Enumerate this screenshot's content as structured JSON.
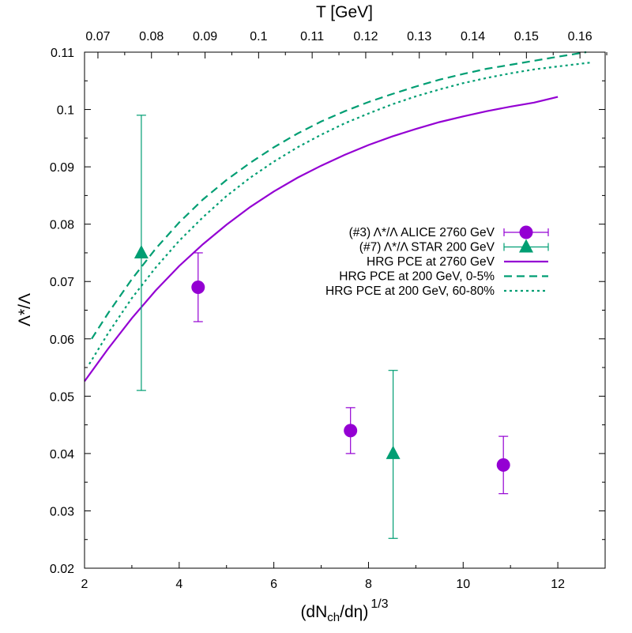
{
  "chart_data": {
    "type": "scatter",
    "title": "",
    "xlabel": "(dN_ch/dη)^{1/3}",
    "xlabel_parts": {
      "base": "(dN",
      "sub": "ch",
      "mid": "/dη)",
      "sup": "1/3"
    },
    "ylabel": "Λ*/Λ",
    "x2label": "T [GeV]",
    "xlim": [
      2,
      13
    ],
    "ylim": [
      0.02,
      0.11
    ],
    "x2lim": [
      0.0675,
      0.1647
    ],
    "x_ticks": [
      2,
      4,
      6,
      8,
      10,
      12
    ],
    "x_tick_labels": [
      "2",
      "4",
      "6",
      "8",
      "10",
      "12"
    ],
    "y_ticks": [
      0.02,
      0.03,
      0.04,
      0.05,
      0.06,
      0.07,
      0.08,
      0.09,
      0.1,
      0.11
    ],
    "y_tick_labels": [
      "0.02",
      "0.03",
      "0.04",
      "0.05",
      "0.06",
      "0.07",
      "0.08",
      "0.09",
      "0.1",
      "0.11"
    ],
    "x2_ticks": [
      0.07,
      0.08,
      0.09,
      0.1,
      0.11,
      0.12,
      0.13,
      0.14,
      0.15,
      0.16
    ],
    "x2_tick_labels": [
      "0.07",
      "0.08",
      "0.09",
      "0.1",
      "0.11",
      "0.12",
      "0.13",
      "0.14",
      "0.15",
      "0.16"
    ],
    "legend_position": "center-right",
    "series": [
      {
        "name": "(#3) Λ*/Λ ALICE 2760 GeV",
        "kind": "points",
        "marker": "circle",
        "color": "#9400d3",
        "points": [
          {
            "x": 4.4,
            "y": 0.069,
            "ylo": 0.063,
            "yhi": 0.075
          },
          {
            "x": 7.62,
            "y": 0.044,
            "ylo": 0.04,
            "yhi": 0.048
          },
          {
            "x": 10.85,
            "y": 0.038,
            "ylo": 0.033,
            "yhi": 0.043
          }
        ]
      },
      {
        "name": "(#7) Λ*/Λ STAR 200 GeV",
        "kind": "points",
        "marker": "triangle",
        "color": "#009e73",
        "points": [
          {
            "x": 3.2,
            "y": 0.075,
            "ylo": 0.051,
            "yhi": 0.099
          },
          {
            "x": 8.52,
            "y": 0.04,
            "ylo": 0.0252,
            "yhi": 0.0545
          }
        ]
      },
      {
        "name": "HRG PCE  at 2760 GeV",
        "kind": "line",
        "style": "solid",
        "color": "#9400d3",
        "x": [
          2.0,
          2.5,
          3.0,
          3.5,
          4.0,
          4.5,
          5.0,
          5.5,
          6.0,
          6.5,
          7.0,
          7.5,
          8.0,
          8.5,
          9.0,
          9.5,
          10.0,
          10.5,
          11.0,
          11.5,
          12.0
        ],
        "y": [
          0.0526,
          0.0583,
          0.0636,
          0.0684,
          0.0727,
          0.0765,
          0.0799,
          0.083,
          0.0857,
          0.0881,
          0.0902,
          0.0921,
          0.0938,
          0.0953,
          0.0966,
          0.0978,
          0.0988,
          0.0997,
          0.1005,
          0.1012,
          0.1022
        ]
      },
      {
        "name": "HRG PCE  at 200 GeV, 0-5%",
        "kind": "line",
        "style": "dashed",
        "color": "#009e73",
        "x": [
          2.15,
          2.5,
          3.0,
          3.5,
          4.0,
          4.5,
          5.0,
          5.5,
          6.0,
          6.5,
          7.0,
          7.5,
          8.0,
          8.5,
          9.0,
          9.5,
          10.0,
          10.5,
          11.0,
          11.5,
          12.0,
          12.6
        ],
        "y": [
          0.06,
          0.0645,
          0.0704,
          0.0757,
          0.0803,
          0.0843,
          0.0877,
          0.0907,
          0.0934,
          0.0958,
          0.0979,
          0.0997,
          0.1013,
          0.1027,
          0.104,
          0.1052,
          0.1062,
          0.1071,
          0.1078,
          0.1085,
          0.1092,
          0.11
        ]
      },
      {
        "name": "HRG PCE  at 200 GeV, 60-80%",
        "kind": "line",
        "style": "dotted",
        "color": "#009e73",
        "x": [
          2.1,
          2.5,
          3.0,
          3.5,
          4.0,
          4.5,
          5.0,
          5.5,
          6.0,
          6.5,
          7.0,
          7.5,
          8.0,
          8.5,
          9.0,
          9.5,
          10.0,
          10.5,
          11.0,
          11.5,
          12.0,
          12.7
        ],
        "y": [
          0.0556,
          0.061,
          0.0671,
          0.0724,
          0.0771,
          0.0812,
          0.0849,
          0.0881,
          0.0909,
          0.0934,
          0.0956,
          0.0976,
          0.0993,
          0.1009,
          0.1023,
          0.1035,
          0.1046,
          0.1055,
          0.1063,
          0.107,
          0.1075,
          0.1082
        ]
      }
    ]
  }
}
